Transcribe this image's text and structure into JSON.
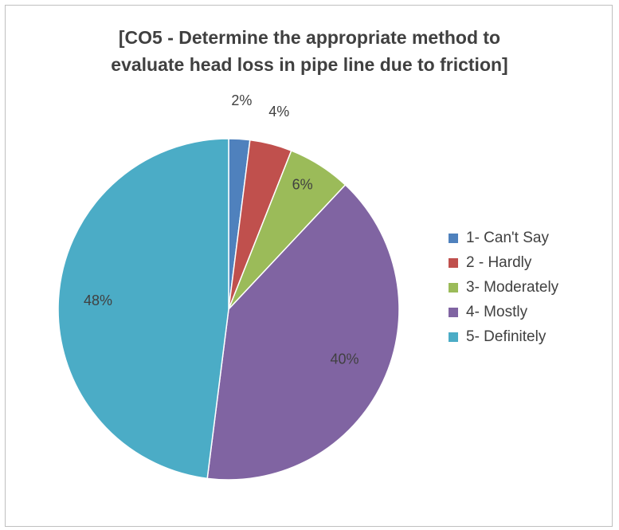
{
  "chart_data": {
    "type": "pie",
    "title_lines": [
      "[CO5 - Determine the appropriate method to",
      "evaluate head loss in pipe line due to friction]"
    ],
    "categories": [
      "1- Can't Say",
      "2 - Hardly",
      "3- Moderately",
      "4- Mostly",
      "5- Definitely"
    ],
    "values": [
      2,
      4,
      6,
      40,
      48
    ],
    "data_labels": [
      "2%",
      "4%",
      "6%",
      "40%",
      "48%"
    ],
    "colors": [
      "#4f81bd",
      "#c0504d",
      "#9bbb59",
      "#8064a2",
      "#4bacc6"
    ],
    "legend_placement": "right"
  }
}
